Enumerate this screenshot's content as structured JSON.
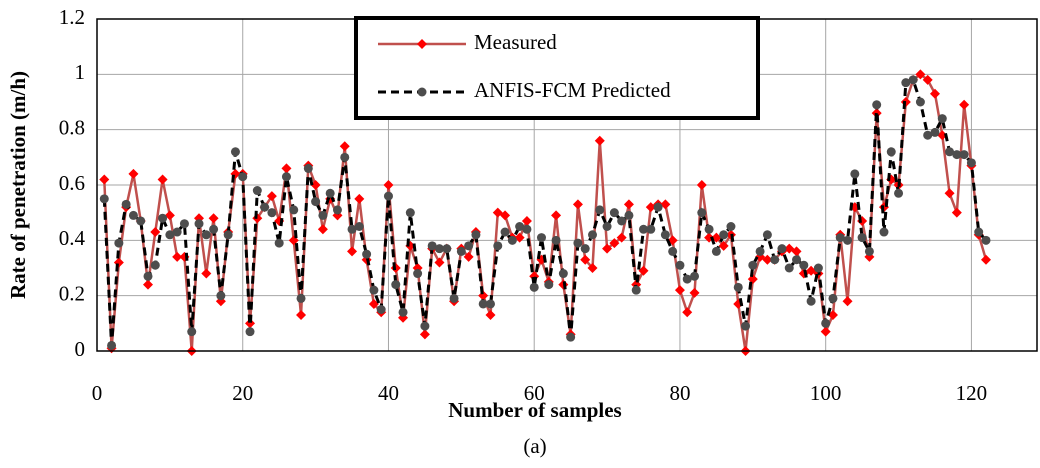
{
  "chart_data": {
    "type": "line",
    "x_label": "Number of samples",
    "y_label": "Rate of penetration (m/h)",
    "caption": "(a)",
    "x": [
      1,
      2,
      3,
      4,
      5,
      6,
      7,
      8,
      9,
      10,
      11,
      12,
      13,
      14,
      15,
      16,
      17,
      18,
      19,
      20,
      21,
      22,
      23,
      24,
      25,
      26,
      27,
      28,
      29,
      30,
      31,
      32,
      33,
      34,
      35,
      36,
      37,
      38,
      39,
      40,
      41,
      42,
      43,
      44,
      45,
      46,
      47,
      48,
      49,
      50,
      51,
      52,
      53,
      54,
      55,
      56,
      57,
      58,
      59,
      60,
      61,
      62,
      63,
      64,
      65,
      66,
      67,
      68,
      69,
      70,
      71,
      72,
      73,
      74,
      75,
      76,
      77,
      78,
      79,
      80,
      81,
      82,
      83,
      84,
      85,
      86,
      87,
      88,
      89,
      90,
      91,
      92,
      93,
      94,
      95,
      96,
      97,
      98,
      99,
      100,
      101,
      102,
      103,
      104,
      105,
      106,
      107,
      108,
      109,
      110,
      111,
      112,
      113,
      114,
      115,
      116,
      117,
      118,
      119,
      120,
      121,
      122
    ],
    "series": [
      {
        "name": "Measured",
        "color": "#c0504d",
        "marker_color": "#ff0000",
        "marker": "diamond",
        "dashed": false,
        "values": [
          0.62,
          0.01,
          0.32,
          0.52,
          0.64,
          0.47,
          0.24,
          0.43,
          0.62,
          0.49,
          0.34,
          0.34,
          0.0,
          0.48,
          0.28,
          0.48,
          0.18,
          0.43,
          0.64,
          0.64,
          0.1,
          0.48,
          0.52,
          0.56,
          0.47,
          0.66,
          0.4,
          0.13,
          0.67,
          0.6,
          0.44,
          0.55,
          0.49,
          0.74,
          0.36,
          0.55,
          0.33,
          0.17,
          0.14,
          0.6,
          0.3,
          0.12,
          0.38,
          0.3,
          0.06,
          0.37,
          0.32,
          0.37,
          0.18,
          0.37,
          0.34,
          0.43,
          0.2,
          0.13,
          0.5,
          0.49,
          0.41,
          0.41,
          0.47,
          0.27,
          0.33,
          0.25,
          0.49,
          0.24,
          0.06,
          0.53,
          0.33,
          0.3,
          0.76,
          0.37,
          0.39,
          0.41,
          0.53,
          0.24,
          0.29,
          0.52,
          0.53,
          0.53,
          0.4,
          0.22,
          0.14,
          0.21,
          0.6,
          0.41,
          0.41,
          0.38,
          0.42,
          0.17,
          0.0,
          0.26,
          0.34,
          0.33,
          0.33,
          0.36,
          0.37,
          0.36,
          0.28,
          0.29,
          0.28,
          0.07,
          0.13,
          0.42,
          0.18,
          0.52,
          0.47,
          0.34,
          0.86,
          0.52,
          0.62,
          0.6,
          0.9,
          0.98,
          1.0,
          0.98,
          0.93,
          0.78,
          0.57,
          0.5,
          0.89,
          0.67,
          0.42,
          0.33
        ]
      },
      {
        "name": "ANFIS-FCM Predicted",
        "color": "#000000",
        "marker_color": "#4d4d4d",
        "marker": "circle",
        "dashed": true,
        "values": [
          0.55,
          0.02,
          0.39,
          0.53,
          0.49,
          0.47,
          0.27,
          0.31,
          0.48,
          0.42,
          0.43,
          0.46,
          0.07,
          0.46,
          0.42,
          0.44,
          0.2,
          0.42,
          0.72,
          0.63,
          0.07,
          0.58,
          0.52,
          0.5,
          0.39,
          0.63,
          0.51,
          0.19,
          0.66,
          0.54,
          0.49,
          0.57,
          0.51,
          0.7,
          0.44,
          0.45,
          0.35,
          0.22,
          0.15,
          0.56,
          0.24,
          0.14,
          0.5,
          0.28,
          0.09,
          0.38,
          0.37,
          0.37,
          0.19,
          0.36,
          0.38,
          0.42,
          0.17,
          0.17,
          0.38,
          0.43,
          0.4,
          0.45,
          0.44,
          0.23,
          0.41,
          0.24,
          0.4,
          0.28,
          0.05,
          0.39,
          0.37,
          0.42,
          0.51,
          0.45,
          0.5,
          0.47,
          0.49,
          0.22,
          0.44,
          0.44,
          0.52,
          0.42,
          0.36,
          0.31,
          0.26,
          0.27,
          0.5,
          0.44,
          0.36,
          0.42,
          0.45,
          0.23,
          0.09,
          0.31,
          0.36,
          0.42,
          0.33,
          0.37,
          0.3,
          0.33,
          0.31,
          0.18,
          0.3,
          0.1,
          0.19,
          0.41,
          0.4,
          0.64,
          0.41,
          0.36,
          0.89,
          0.43,
          0.72,
          0.57,
          0.97,
          0.98,
          0.9,
          0.78,
          0.79,
          0.84,
          0.72,
          0.71,
          0.71,
          0.68,
          0.43,
          0.4
        ]
      }
    ],
    "xlim": [
      0,
      129
    ],
    "xticks": [
      0,
      20,
      40,
      60,
      80,
      100,
      120
    ],
    "ylim": [
      0,
      1.2
    ],
    "yticks": [
      0,
      0.2,
      0.4,
      0.6,
      0.8,
      1,
      1.2
    ],
    "grid": true,
    "legend": "top center"
  }
}
